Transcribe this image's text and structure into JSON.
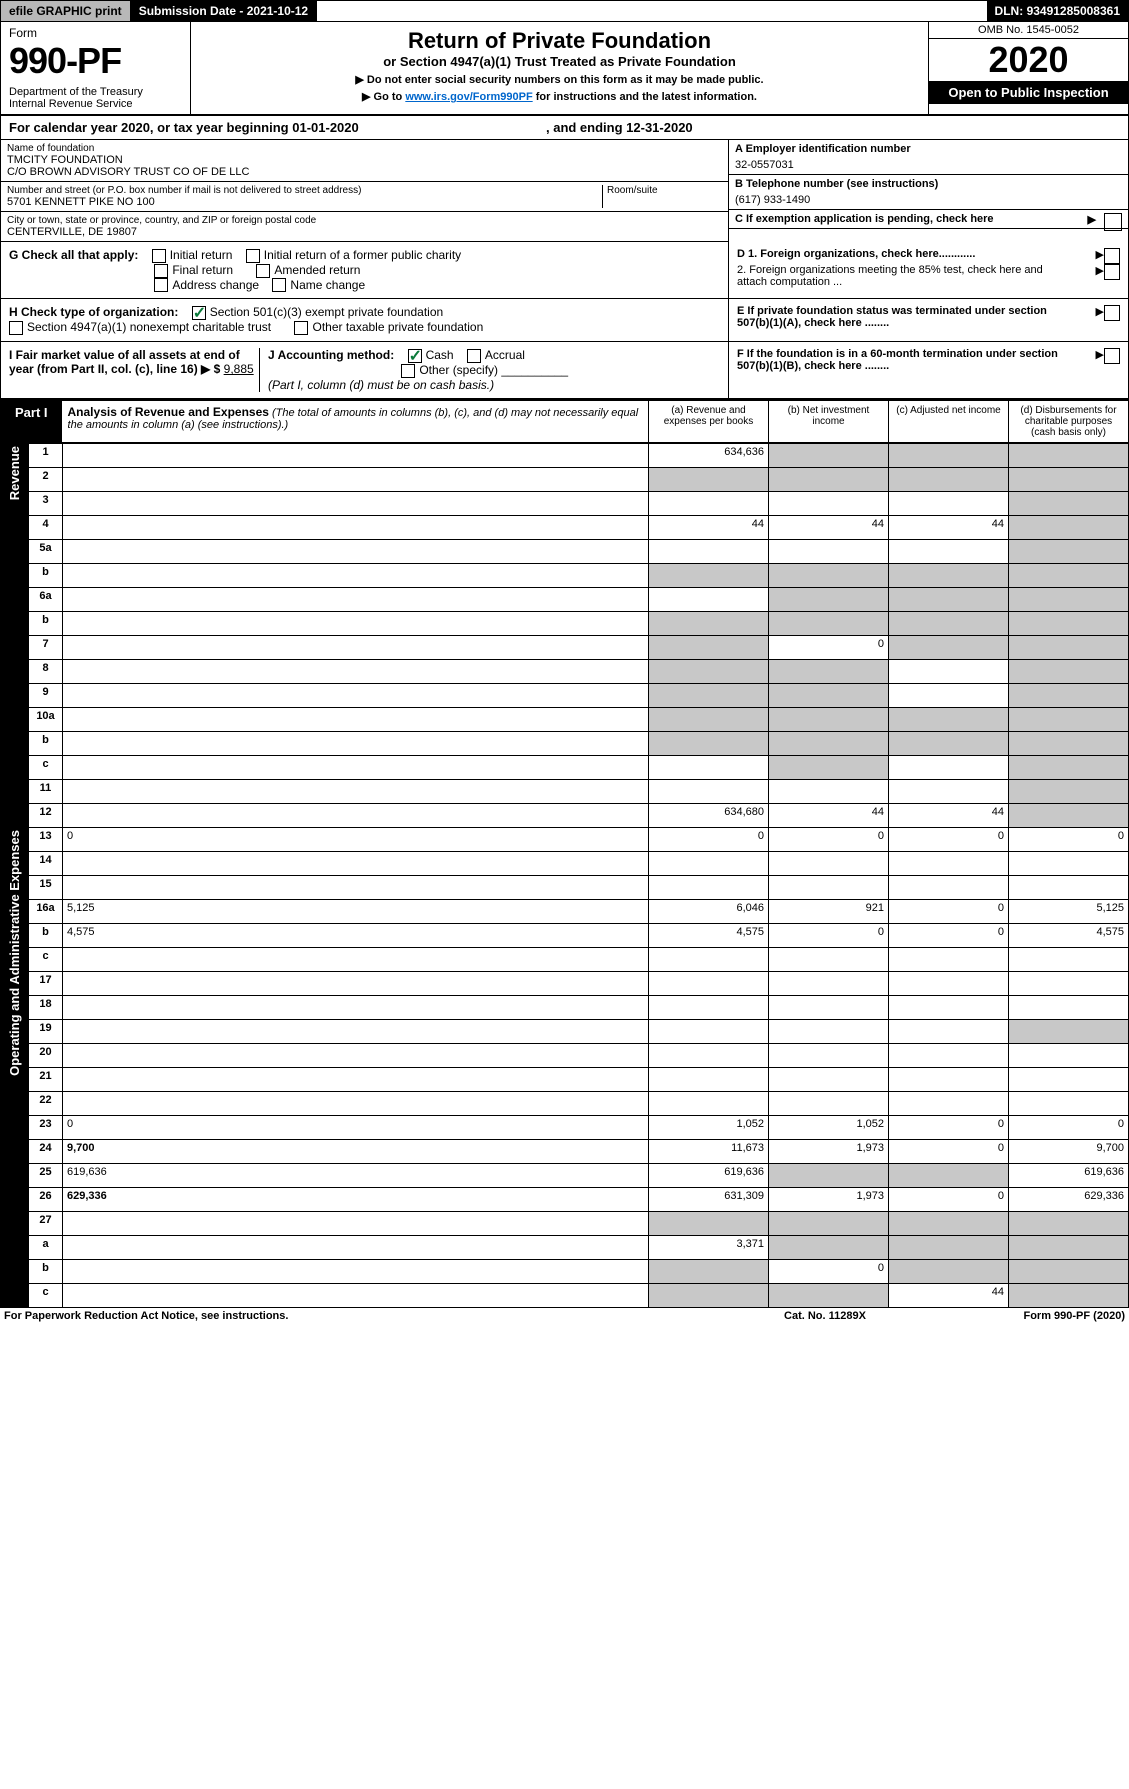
{
  "topbar": {
    "efile": "efile GRAPHIC print",
    "sub_label": "Submission Date -",
    "sub_date": "2021-10-12",
    "dln_label": "DLN:",
    "dln": "93491285008361"
  },
  "header": {
    "form_word": "Form",
    "form_no": "990-PF",
    "dept": "Department of the Treasury\nInternal Revenue Service",
    "title": "Return of Private Foundation",
    "subtitle": "or Section 4947(a)(1) Trust Treated as Private Foundation",
    "note1": "▶ Do not enter social security numbers on this form as it may be made public.",
    "note2_pre": "▶ Go to ",
    "note2_link": "www.irs.gov/Form990PF",
    "note2_post": " for instructions and the latest information.",
    "omb": "OMB No. 1545-0052",
    "year": "2020",
    "open": "Open to Public Inspection"
  },
  "cal": {
    "pre": "For calendar year 2020, or tax year beginning ",
    "begin": "01-01-2020",
    "mid": ", and ending ",
    "end": "12-31-2020"
  },
  "info": {
    "name_lbl": "Name of foundation",
    "name1": "TMCITY FOUNDATION",
    "name2": "C/O BROWN ADVISORY TRUST CO OF DE LLC",
    "addr_lbl": "Number and street (or P.O. box number if mail is not delivered to street address)",
    "room_lbl": "Room/suite",
    "addr": "5701 KENNETT PIKE NO 100",
    "city_lbl": "City or town, state or province, country, and ZIP or foreign postal code",
    "city": "CENTERVILLE, DE  19807",
    "A_lbl": "A Employer identification number",
    "ein": "32-0557031",
    "B_lbl": "B Telephone number (see instructions)",
    "phone": "(617) 933-1490",
    "C_lbl": "C If exemption application is pending, check here",
    "D1": "D 1. Foreign organizations, check here............",
    "D2": "2. Foreign organizations meeting the 85% test, check here and attach computation ...",
    "E": "E  If private foundation status was terminated under section 507(b)(1)(A), check here ........",
    "F": "F  If the foundation is in a 60-month termination under section 507(b)(1)(B), check here ........"
  },
  "G": {
    "lbl": "G Check all that apply:",
    "o1": "Initial return",
    "o2": "Initial return of a former public charity",
    "o3": "Final return",
    "o4": "Amended return",
    "o5": "Address change",
    "o6": "Name change"
  },
  "H": {
    "lbl": "H Check type of organization:",
    "o1": "Section 501(c)(3) exempt private foundation",
    "o2": "Section 4947(a)(1) nonexempt charitable trust",
    "o3": "Other taxable private foundation"
  },
  "I": {
    "lbl": "I Fair market value of all assets at end of year (from Part II, col. (c), line 16) ▶ $",
    "val": "9,885"
  },
  "J": {
    "lbl": "J Accounting method:",
    "o1": "Cash",
    "o2": "Accrual",
    "o3": "Other (specify)",
    "note": "(Part I, column (d) must be on cash basis.)"
  },
  "part1": {
    "label": "Part I",
    "title": "Analysis of Revenue and Expenses",
    "title_note": " (The total of amounts in columns (b), (c), and (d) may not necessarily equal the amounts in column (a) (see instructions).)",
    "col_a": "(a)   Revenue and expenses per books",
    "col_b": "(b)  Net investment income",
    "col_c": "(c)  Adjusted net income",
    "col_d": "(d)  Disbursements for charitable purposes (cash basis only)"
  },
  "sections": {
    "revenue": "Revenue",
    "expenses": "Operating and Administrative Expenses"
  },
  "lines": [
    {
      "n": "1",
      "d": "",
      "a": "634,636",
      "b": "",
      "c": "",
      "bgrey": true,
      "cgrey": true,
      "dgrey": true
    },
    {
      "n": "2",
      "d": "",
      "a": "",
      "b": "",
      "c": "",
      "agrey": true,
      "bgrey": true,
      "cgrey": true,
      "dgrey": true
    },
    {
      "n": "3",
      "d": "",
      "a": "",
      "b": "",
      "c": "",
      "dgrey": true
    },
    {
      "n": "4",
      "d": "",
      "a": "44",
      "b": "44",
      "c": "44",
      "dgrey": true
    },
    {
      "n": "5a",
      "d": "",
      "a": "",
      "b": "",
      "c": "",
      "dgrey": true
    },
    {
      "n": "b",
      "d": "",
      "a": "",
      "b": "",
      "c": "",
      "agrey": true,
      "bgrey": true,
      "cgrey": true,
      "dgrey": true
    },
    {
      "n": "6a",
      "d": "",
      "a": "",
      "b": "",
      "c": "",
      "bgrey": true,
      "cgrey": true,
      "dgrey": true
    },
    {
      "n": "b",
      "d": "",
      "a": "",
      "b": "",
      "c": "",
      "agrey": true,
      "bgrey": true,
      "cgrey": true,
      "dgrey": true
    },
    {
      "n": "7",
      "d": "",
      "a": "",
      "b": "0",
      "c": "",
      "agrey": true,
      "cgrey": true,
      "dgrey": true
    },
    {
      "n": "8",
      "d": "",
      "a": "",
      "b": "",
      "c": "",
      "agrey": true,
      "bgrey": true,
      "dgrey": true
    },
    {
      "n": "9",
      "d": "",
      "a": "",
      "b": "",
      "c": "",
      "agrey": true,
      "bgrey": true,
      "dgrey": true
    },
    {
      "n": "10a",
      "d": "",
      "a": "",
      "b": "",
      "c": "",
      "agrey": true,
      "bgrey": true,
      "cgrey": true,
      "dgrey": true
    },
    {
      "n": "b",
      "d": "",
      "a": "",
      "b": "",
      "c": "",
      "agrey": true,
      "bgrey": true,
      "cgrey": true,
      "dgrey": true
    },
    {
      "n": "c",
      "d": "",
      "a": "",
      "b": "",
      "c": "",
      "bgrey": true,
      "dgrey": true
    },
    {
      "n": "11",
      "d": "",
      "a": "",
      "b": "",
      "c": "",
      "dgrey": true
    },
    {
      "n": "12",
      "d": "",
      "a": "634,680",
      "b": "44",
      "c": "44",
      "bold": true,
      "dgrey": true
    }
  ],
  "exp_lines": [
    {
      "n": "13",
      "d": "0",
      "a": "0",
      "b": "0",
      "c": "0"
    },
    {
      "n": "14",
      "d": "",
      "a": "",
      "b": "",
      "c": ""
    },
    {
      "n": "15",
      "d": "",
      "a": "",
      "b": "",
      "c": ""
    },
    {
      "n": "16a",
      "d": "5,125",
      "a": "6,046",
      "b": "921",
      "c": "0"
    },
    {
      "n": "b",
      "d": "4,575",
      "a": "4,575",
      "b": "0",
      "c": "0"
    },
    {
      "n": "c",
      "d": "",
      "a": "",
      "b": "",
      "c": ""
    },
    {
      "n": "17",
      "d": "",
      "a": "",
      "b": "",
      "c": ""
    },
    {
      "n": "18",
      "d": "",
      "a": "",
      "b": "",
      "c": ""
    },
    {
      "n": "19",
      "d": "",
      "a": "",
      "b": "",
      "c": "",
      "dgrey": true
    },
    {
      "n": "20",
      "d": "",
      "a": "",
      "b": "",
      "c": ""
    },
    {
      "n": "21",
      "d": "",
      "a": "",
      "b": "",
      "c": ""
    },
    {
      "n": "22",
      "d": "",
      "a": "",
      "b": "",
      "c": ""
    },
    {
      "n": "23",
      "d": "0",
      "a": "1,052",
      "b": "1,052",
      "c": "0"
    },
    {
      "n": "24",
      "d": "9,700",
      "a": "11,673",
      "b": "1,973",
      "c": "0",
      "bold": true
    },
    {
      "n": "25",
      "d": "619,636",
      "a": "619,636",
      "b": "",
      "c": "",
      "bgrey": true,
      "cgrey": true
    },
    {
      "n": "26",
      "d": "629,336",
      "a": "631,309",
      "b": "1,973",
      "c": "0",
      "bold": true
    },
    {
      "n": "27",
      "d": "",
      "a": "",
      "b": "",
      "c": "",
      "agrey": true,
      "bgrey": true,
      "cgrey": true,
      "dgrey": true
    },
    {
      "n": "a",
      "d": "",
      "a": "3,371",
      "b": "",
      "c": "",
      "bold": true,
      "bgrey": true,
      "cgrey": true,
      "dgrey": true
    },
    {
      "n": "b",
      "d": "",
      "a": "",
      "b": "0",
      "c": "",
      "bold": true,
      "agrey": true,
      "cgrey": true,
      "dgrey": true
    },
    {
      "n": "c",
      "d": "",
      "a": "",
      "b": "",
      "c": "44",
      "bold": true,
      "agrey": true,
      "bgrey": true,
      "dgrey": true
    }
  ],
  "footer": {
    "left": "For Paperwork Reduction Act Notice, see instructions.",
    "mid": "Cat. No. 11289X",
    "right": "Form 990-PF (2020)"
  }
}
